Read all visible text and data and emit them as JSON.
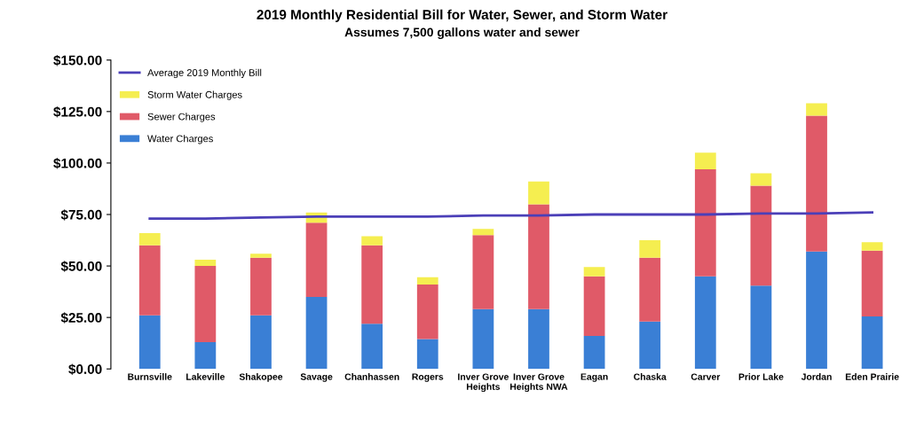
{
  "chart_data": {
    "type": "bar",
    "stacked": true,
    "title": "2019 Monthly Residential Bill for Water, Sewer, and Storm Water",
    "subtitle": "Assumes 7,500 gallons water and sewer",
    "categories": [
      "Burnsville",
      "Lakeville",
      "Shakopee",
      "Savage",
      "Chanhassen",
      "Rogers",
      "Inver Grove\nHeights",
      "Inver Grove\nHeights NWA",
      "Eagan",
      "Chaska",
      "Carver",
      "Prior Lake",
      "Jordan",
      "Eden Prairie"
    ],
    "series": [
      {
        "name": "Water Charges",
        "color": "#3a7fd5",
        "values": [
          26,
          13,
          26,
          35,
          22,
          14.5,
          29,
          29,
          16,
          23,
          45,
          40.5,
          57,
          25.5
        ]
      },
      {
        "name": "Sewer Charges",
        "color": "#e05a68",
        "values": [
          34,
          37,
          28,
          36,
          38,
          26.5,
          36,
          51,
          29,
          31,
          52,
          48.5,
          66,
          32
        ]
      },
      {
        "name": "Storm Water Charges",
        "color": "#f5ee50",
        "values": [
          6,
          3,
          2,
          5,
          4.5,
          3.5,
          3,
          11,
          4.5,
          8.5,
          8,
          6,
          6,
          4
        ]
      },
      {
        "name": "Average 2019 Monthly Bill",
        "type": "line",
        "color": "#4b3fb8",
        "values": [
          73,
          73,
          73.5,
          74,
          74,
          74,
          74.5,
          74.5,
          75,
          75,
          75,
          75.5,
          75.5,
          76
        ]
      }
    ],
    "ylim": [
      0,
      150
    ],
    "yticks": [
      {
        "value": 0,
        "label": "$0.00"
      },
      {
        "value": 25,
        "label": "$25.00"
      },
      {
        "value": 50,
        "label": "$50.00"
      },
      {
        "value": 75,
        "label": "$75.00"
      },
      {
        "value": 100,
        "label": "$100.00"
      },
      {
        "value": 125,
        "label": "$125.00"
      },
      {
        "value": 150,
        "label": "$150.00"
      }
    ],
    "grid": false,
    "legend": "top left"
  }
}
